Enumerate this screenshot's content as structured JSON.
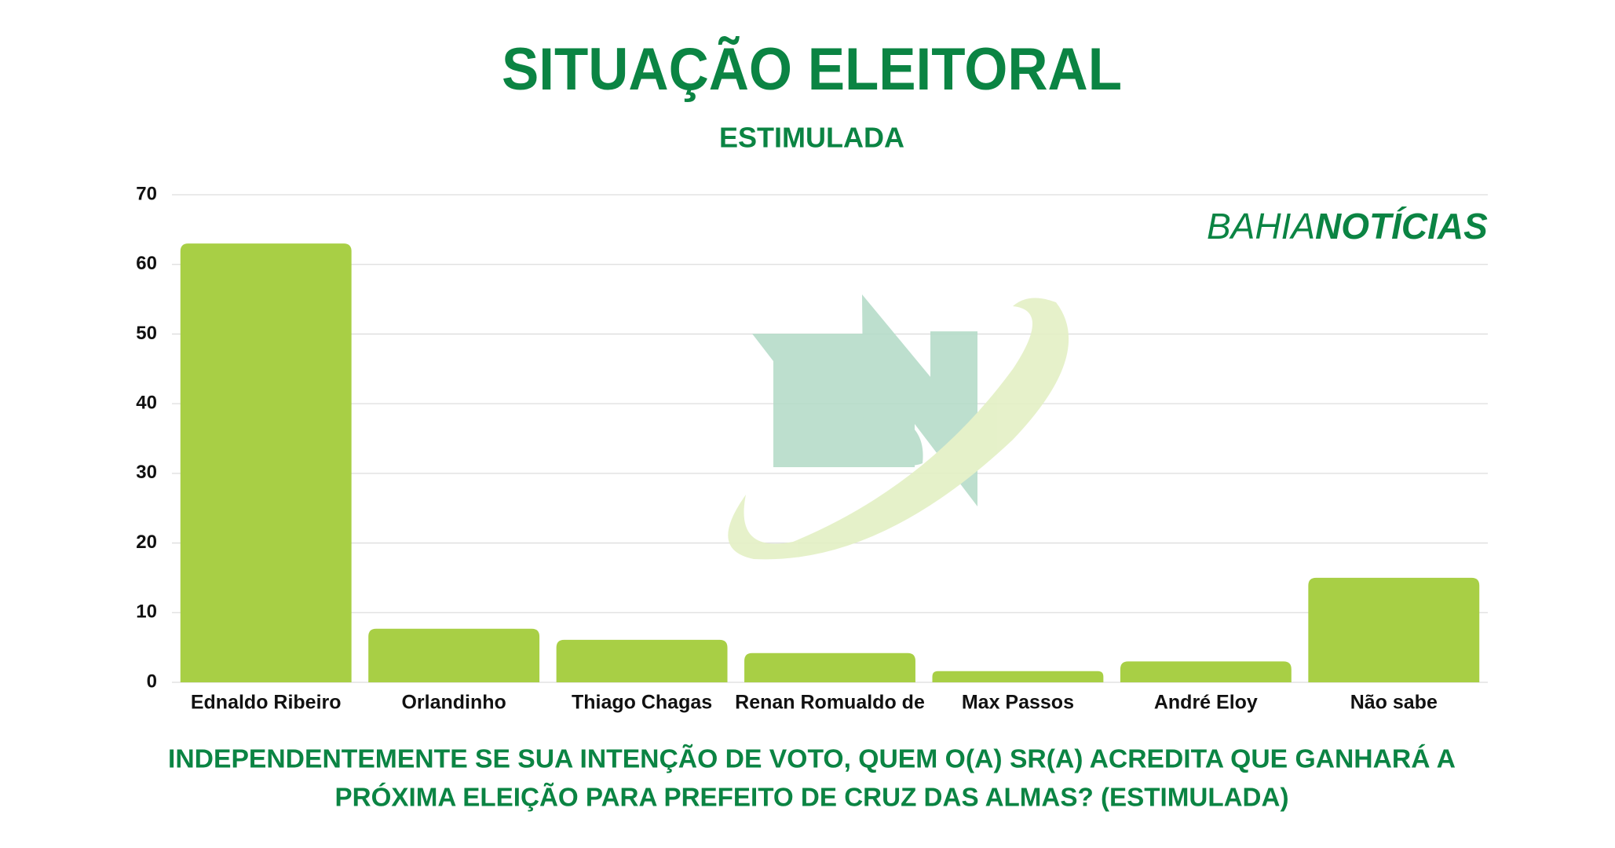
{
  "chart_data": {
    "type": "bar",
    "title": "SITUAÇÃO ELEITORAL",
    "subtitle": "ESTIMULADA",
    "brand": [
      "BAHIA",
      "NOTÍCIAS"
    ],
    "question_lines": [
      "INDEPENDENTEMENTE SE SUA INTENÇÃO DE VOTO, QUEM O(A) SR(A) ACREDITA QUE GANHARÁ A",
      "PRÓXIMA ELEIÇÃO PARA PREFEITO DE CRUZ DAS ALMAS? (ESTIMULADA)"
    ],
    "categories": [
      "Ednaldo Ribeiro",
      "Orlandinho",
      "Thiago Chagas",
      "Renan Romualdo de",
      "Max Passos",
      "André Eloy",
      "Não sabe"
    ],
    "values": [
      63,
      7.7,
      6.1,
      4.2,
      1.6,
      3,
      15
    ],
    "color": "#a8cf45",
    "ylim": [
      0,
      70
    ],
    "yticks": [
      0,
      10,
      20,
      30,
      40,
      50,
      60,
      70
    ],
    "grid": true
  }
}
